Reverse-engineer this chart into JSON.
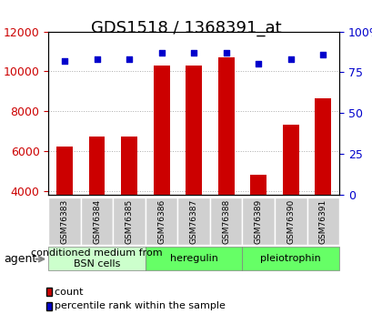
{
  "title": "GDS1518 / 1368391_at",
  "samples": [
    "GSM76383",
    "GSM76384",
    "GSM76385",
    "GSM76386",
    "GSM76387",
    "GSM76388",
    "GSM76389",
    "GSM76390",
    "GSM76391"
  ],
  "counts": [
    6200,
    6700,
    6700,
    10300,
    10300,
    10700,
    4800,
    7300,
    8650
  ],
  "percentiles": [
    82,
    83,
    83,
    87,
    87,
    87,
    80,
    83,
    86
  ],
  "percentile_scale": 16000,
  "groups": [
    {
      "label": "conditioned medium from\nBSN cells",
      "start": 0,
      "end": 3,
      "color": "#ccffcc"
    },
    {
      "label": "heregulin",
      "start": 3,
      "end": 6,
      "color": "#66ff66"
    },
    {
      "label": "pleiotrophin",
      "start": 6,
      "end": 9,
      "color": "#66ff66"
    }
  ],
  "ylim_left": [
    3800,
    12000
  ],
  "yticks_left": [
    4000,
    6000,
    8000,
    10000,
    12000
  ],
  "ylim_right": [
    0,
    100
  ],
  "yticks_right": [
    0,
    25,
    50,
    75,
    100
  ],
  "bar_color": "#cc0000",
  "dot_color": "#0000cc",
  "bar_width": 0.5,
  "grid_color": "#aaaaaa",
  "agent_label": "agent",
  "legend_count_label": "count",
  "legend_percentile_label": "percentile rank within the sample",
  "left_tick_color": "#cc0000",
  "right_tick_color": "#0000cc",
  "title_fontsize": 13,
  "tick_fontsize": 9,
  "label_fontsize": 8,
  "group_label_fontsize": 8
}
